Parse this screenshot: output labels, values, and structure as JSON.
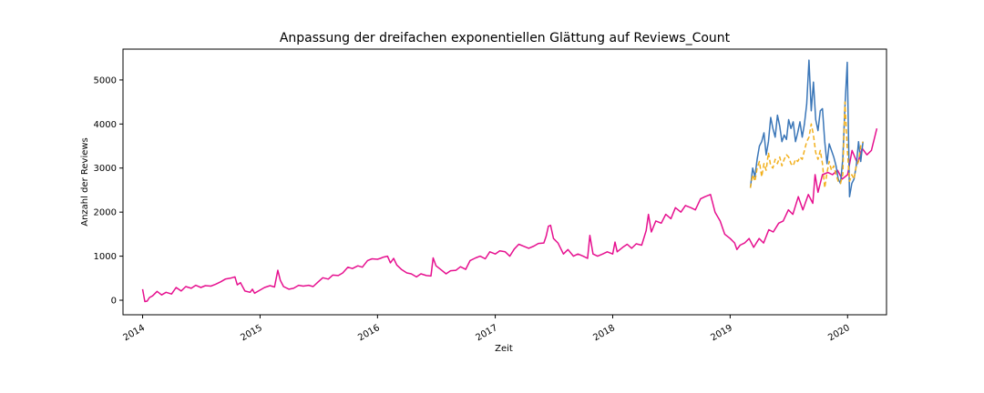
{
  "chart_data": {
    "type": "line",
    "title": "Anpassung der dreifachen exponentiellen Glättung auf Reviews_Count",
    "xlabel": "Zeit",
    "ylabel": "Anzahl der Reviews",
    "x_ticks": [
      "2014",
      "2015",
      "2016",
      "2017",
      "2018",
      "2019",
      "2020"
    ],
    "y_ticks": [
      "0",
      "1000",
      "2000",
      "3000",
      "4000",
      "5000"
    ],
    "xlim": [
      "2013-11-01",
      "2020-05-01"
    ],
    "ylim": [
      -330,
      5700
    ],
    "grid": false,
    "legend": "none",
    "series": [
      {
        "color": "#e6108f",
        "style": "solid",
        "points": [
          [
            "2014-01-01",
            250
          ],
          [
            "2014-01-08",
            -30
          ],
          [
            "2014-01-15",
            -20
          ],
          [
            "2014-01-22",
            60
          ],
          [
            "2014-02-01",
            100
          ],
          [
            "2014-02-15",
            200
          ],
          [
            "2014-03-01",
            120
          ],
          [
            "2014-03-15",
            180
          ],
          [
            "2014-04-01",
            140
          ],
          [
            "2014-04-15",
            290
          ],
          [
            "2014-05-01",
            210
          ],
          [
            "2014-05-15",
            310
          ],
          [
            "2014-06-01",
            270
          ],
          [
            "2014-06-15",
            340
          ],
          [
            "2014-07-01",
            290
          ],
          [
            "2014-07-15",
            330
          ],
          [
            "2014-08-01",
            320
          ],
          [
            "2014-08-15",
            360
          ],
          [
            "2014-09-01",
            420
          ],
          [
            "2014-09-15",
            480
          ],
          [
            "2014-10-01",
            500
          ],
          [
            "2014-10-15",
            530
          ],
          [
            "2014-10-22",
            350
          ],
          [
            "2014-11-01",
            400
          ],
          [
            "2014-11-15",
            210
          ],
          [
            "2014-12-01",
            180
          ],
          [
            "2014-12-08",
            250
          ],
          [
            "2014-12-15",
            160
          ],
          [
            "2015-01-01",
            230
          ],
          [
            "2015-01-15",
            290
          ],
          [
            "2015-02-01",
            330
          ],
          [
            "2015-02-15",
            300
          ],
          [
            "2015-02-25",
            680
          ],
          [
            "2015-03-05",
            450
          ],
          [
            "2015-03-15",
            310
          ],
          [
            "2015-04-01",
            250
          ],
          [
            "2015-04-15",
            270
          ],
          [
            "2015-05-01",
            340
          ],
          [
            "2015-05-15",
            320
          ],
          [
            "2015-06-01",
            340
          ],
          [
            "2015-06-15",
            310
          ],
          [
            "2015-07-01",
            420
          ],
          [
            "2015-07-15",
            510
          ],
          [
            "2015-08-01",
            480
          ],
          [
            "2015-08-15",
            570
          ],
          [
            "2015-09-01",
            560
          ],
          [
            "2015-09-15",
            620
          ],
          [
            "2015-10-01",
            750
          ],
          [
            "2015-10-15",
            720
          ],
          [
            "2015-11-01",
            780
          ],
          [
            "2015-11-15",
            750
          ],
          [
            "2015-12-01",
            900
          ],
          [
            "2015-12-15",
            940
          ],
          [
            "2016-01-01",
            930
          ],
          [
            "2016-01-10",
            950
          ],
          [
            "2016-01-20",
            980
          ],
          [
            "2016-02-01",
            1000
          ],
          [
            "2016-02-10",
            850
          ],
          [
            "2016-02-20",
            950
          ],
          [
            "2016-03-01",
            800
          ],
          [
            "2016-03-15",
            700
          ],
          [
            "2016-04-01",
            620
          ],
          [
            "2016-04-15",
            600
          ],
          [
            "2016-05-01",
            530
          ],
          [
            "2016-05-15",
            600
          ],
          [
            "2016-06-01",
            560
          ],
          [
            "2016-06-15",
            550
          ],
          [
            "2016-06-22",
            960
          ],
          [
            "2016-07-01",
            780
          ],
          [
            "2016-07-15",
            700
          ],
          [
            "2016-08-01",
            600
          ],
          [
            "2016-08-15",
            670
          ],
          [
            "2016-09-01",
            680
          ],
          [
            "2016-09-15",
            760
          ],
          [
            "2016-10-01",
            700
          ],
          [
            "2016-10-15",
            900
          ],
          [
            "2016-11-01",
            960
          ],
          [
            "2016-11-15",
            1000
          ],
          [
            "2016-12-01",
            940
          ],
          [
            "2016-12-15",
            1100
          ],
          [
            "2017-01-01",
            1050
          ],
          [
            "2017-01-15",
            1120
          ],
          [
            "2017-02-01",
            1100
          ],
          [
            "2017-02-15",
            1000
          ],
          [
            "2017-03-01",
            1160
          ],
          [
            "2017-03-15",
            1270
          ],
          [
            "2017-04-01",
            1220
          ],
          [
            "2017-04-15",
            1180
          ],
          [
            "2017-05-01",
            1230
          ],
          [
            "2017-05-15",
            1290
          ],
          [
            "2017-06-01",
            1300
          ],
          [
            "2017-06-08",
            1450
          ],
          [
            "2017-06-15",
            1680
          ],
          [
            "2017-06-22",
            1700
          ],
          [
            "2017-07-01",
            1400
          ],
          [
            "2017-07-15",
            1300
          ],
          [
            "2017-08-01",
            1050
          ],
          [
            "2017-08-15",
            1150
          ],
          [
            "2017-09-01",
            1000
          ],
          [
            "2017-09-15",
            1050
          ],
          [
            "2017-10-01",
            1000
          ],
          [
            "2017-10-15",
            950
          ],
          [
            "2017-10-22",
            1470
          ],
          [
            "2017-11-01",
            1050
          ],
          [
            "2017-11-15",
            1000
          ],
          [
            "2017-12-01",
            1050
          ],
          [
            "2017-12-15",
            1100
          ],
          [
            "2018-01-01",
            1050
          ],
          [
            "2018-01-08",
            1320
          ],
          [
            "2018-01-15",
            1100
          ],
          [
            "2018-02-01",
            1200
          ],
          [
            "2018-02-15",
            1270
          ],
          [
            "2018-03-01",
            1180
          ],
          [
            "2018-03-15",
            1280
          ],
          [
            "2018-04-01",
            1250
          ],
          [
            "2018-04-15",
            1580
          ],
          [
            "2018-04-22",
            1950
          ],
          [
            "2018-05-01",
            1550
          ],
          [
            "2018-05-15",
            1800
          ],
          [
            "2018-06-01",
            1750
          ],
          [
            "2018-06-15",
            1950
          ],
          [
            "2018-07-01",
            1850
          ],
          [
            "2018-07-15",
            2100
          ],
          [
            "2018-08-01",
            2000
          ],
          [
            "2018-08-15",
            2150
          ],
          [
            "2018-09-01",
            2100
          ],
          [
            "2018-09-15",
            2050
          ],
          [
            "2018-10-01",
            2300
          ],
          [
            "2018-10-15",
            2350
          ],
          [
            "2018-11-01",
            2400
          ],
          [
            "2018-11-15",
            2000
          ],
          [
            "2018-12-01",
            1800
          ],
          [
            "2018-12-15",
            1500
          ],
          [
            "2019-01-01",
            1400
          ],
          [
            "2019-01-15",
            1300
          ],
          [
            "2019-01-22",
            1150
          ],
          [
            "2019-02-01",
            1250
          ],
          [
            "2019-02-15",
            1300
          ],
          [
            "2019-03-01",
            1400
          ],
          [
            "2019-03-15",
            1200
          ],
          [
            "2019-04-01",
            1400
          ],
          [
            "2019-04-15",
            1300
          ],
          [
            "2019-05-01",
            1600
          ],
          [
            "2019-05-15",
            1550
          ],
          [
            "2019-06-01",
            1750
          ],
          [
            "2019-06-15",
            1800
          ],
          [
            "2019-07-01",
            2050
          ],
          [
            "2019-07-15",
            1950
          ],
          [
            "2019-08-01",
            2350
          ],
          [
            "2019-08-15",
            2050
          ],
          [
            "2019-09-01",
            2400
          ],
          [
            "2019-09-15",
            2200
          ],
          [
            "2019-09-22",
            2850
          ],
          [
            "2019-10-01",
            2450
          ],
          [
            "2019-10-15",
            2850
          ],
          [
            "2019-11-01",
            2900
          ],
          [
            "2019-11-15",
            2850
          ],
          [
            "2019-12-01",
            2950
          ],
          [
            "2019-12-15",
            2750
          ],
          [
            "2020-01-01",
            2850
          ],
          [
            "2020-01-15",
            3400
          ],
          [
            "2020-02-01",
            3100
          ],
          [
            "2020-02-15",
            3450
          ],
          [
            "2020-03-01",
            3300
          ],
          [
            "2020-03-15",
            3400
          ],
          [
            "2020-04-01",
            3900
          ]
        ]
      },
      {
        "color": "#3a76b8",
        "style": "solid",
        "points": [
          [
            "2019-03-05",
            2550
          ],
          [
            "2019-03-12",
            3000
          ],
          [
            "2019-03-19",
            2800
          ],
          [
            "2019-03-26",
            3200
          ],
          [
            "2019-04-02",
            3500
          ],
          [
            "2019-04-09",
            3600
          ],
          [
            "2019-04-16",
            3800
          ],
          [
            "2019-04-23",
            3300
          ],
          [
            "2019-04-30",
            3600
          ],
          [
            "2019-05-07",
            4150
          ],
          [
            "2019-05-14",
            3900
          ],
          [
            "2019-05-21",
            3700
          ],
          [
            "2019-05-28",
            4200
          ],
          [
            "2019-06-04",
            3950
          ],
          [
            "2019-06-11",
            3600
          ],
          [
            "2019-06-18",
            3750
          ],
          [
            "2019-06-25",
            3650
          ],
          [
            "2019-07-02",
            4100
          ],
          [
            "2019-07-09",
            3900
          ],
          [
            "2019-07-16",
            4050
          ],
          [
            "2019-07-23",
            3600
          ],
          [
            "2019-07-30",
            3800
          ],
          [
            "2019-08-06",
            4050
          ],
          [
            "2019-08-13",
            3700
          ],
          [
            "2019-08-20",
            4000
          ],
          [
            "2019-08-27",
            4450
          ],
          [
            "2019-09-03",
            5450
          ],
          [
            "2019-09-10",
            4300
          ],
          [
            "2019-09-17",
            4950
          ],
          [
            "2019-09-24",
            4100
          ],
          [
            "2019-10-01",
            3850
          ],
          [
            "2019-10-08",
            4300
          ],
          [
            "2019-10-15",
            4350
          ],
          [
            "2019-10-22",
            3600
          ],
          [
            "2019-10-29",
            3100
          ],
          [
            "2019-11-05",
            3550
          ],
          [
            "2019-11-12",
            3400
          ],
          [
            "2019-11-19",
            3250
          ],
          [
            "2019-11-26",
            3050
          ],
          [
            "2019-12-03",
            2750
          ],
          [
            "2019-12-10",
            2650
          ],
          [
            "2019-12-17",
            3200
          ],
          [
            "2019-12-24",
            4400
          ],
          [
            "2019-12-31",
            5400
          ],
          [
            "2020-01-07",
            2350
          ],
          [
            "2020-01-14",
            2650
          ],
          [
            "2020-01-21",
            2750
          ],
          [
            "2020-01-28",
            3050
          ],
          [
            "2020-02-04",
            3600
          ],
          [
            "2020-02-11",
            3150
          ],
          [
            "2020-02-18",
            3600
          ]
        ]
      },
      {
        "color": "#f2b01e",
        "style": "dashed",
        "points": [
          [
            "2019-03-05",
            2550
          ],
          [
            "2019-03-12",
            2850
          ],
          [
            "2019-03-19",
            2700
          ],
          [
            "2019-03-26",
            3000
          ],
          [
            "2019-04-02",
            3150
          ],
          [
            "2019-04-09",
            2800
          ],
          [
            "2019-04-16",
            3100
          ],
          [
            "2019-04-23",
            2950
          ],
          [
            "2019-04-30",
            3350
          ],
          [
            "2019-05-07",
            3050
          ],
          [
            "2019-05-14",
            3000
          ],
          [
            "2019-05-21",
            3200
          ],
          [
            "2019-05-28",
            3100
          ],
          [
            "2019-06-04",
            3250
          ],
          [
            "2019-06-11",
            3050
          ],
          [
            "2019-06-18",
            3200
          ],
          [
            "2019-06-25",
            3300
          ],
          [
            "2019-07-02",
            3250
          ],
          [
            "2019-07-09",
            3100
          ],
          [
            "2019-07-16",
            3050
          ],
          [
            "2019-07-23",
            3200
          ],
          [
            "2019-07-30",
            3150
          ],
          [
            "2019-08-06",
            3250
          ],
          [
            "2019-08-13",
            3200
          ],
          [
            "2019-08-20",
            3400
          ],
          [
            "2019-08-27",
            3600
          ],
          [
            "2019-09-03",
            3700
          ],
          [
            "2019-09-10",
            4000
          ],
          [
            "2019-09-17",
            3750
          ],
          [
            "2019-09-24",
            3350
          ],
          [
            "2019-10-01",
            3200
          ],
          [
            "2019-10-08",
            3400
          ],
          [
            "2019-10-15",
            3100
          ],
          [
            "2019-10-22",
            2550
          ],
          [
            "2019-10-29",
            2900
          ],
          [
            "2019-11-05",
            3150
          ],
          [
            "2019-11-12",
            2950
          ],
          [
            "2019-11-19",
            3050
          ],
          [
            "2019-11-26",
            2850
          ],
          [
            "2019-12-03",
            2700
          ],
          [
            "2019-12-10",
            2650
          ],
          [
            "2019-12-17",
            2850
          ],
          [
            "2019-12-24",
            4500
          ],
          [
            "2019-12-31",
            3450
          ],
          [
            "2020-01-07",
            2700
          ],
          [
            "2020-01-14",
            2850
          ],
          [
            "2020-01-21",
            2750
          ],
          [
            "2020-01-28",
            3050
          ],
          [
            "2020-02-04",
            3150
          ],
          [
            "2020-02-11",
            3500
          ],
          [
            "2020-02-18",
            3600
          ]
        ]
      }
    ]
  }
}
